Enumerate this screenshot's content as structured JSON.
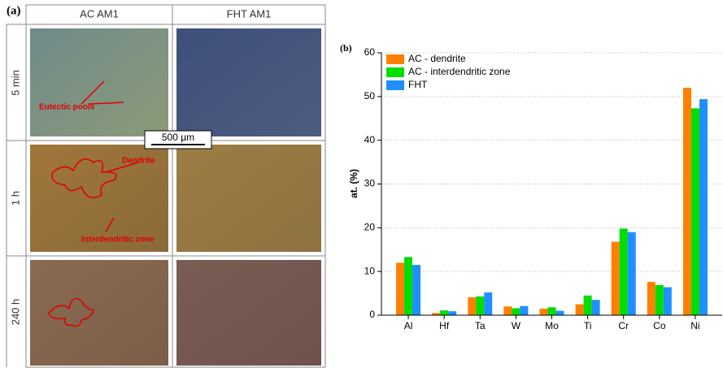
{
  "panel_a": {
    "label": "(a)",
    "columns": [
      "AC AM1",
      "FHT AM1"
    ],
    "rows": [
      "5 min",
      "1 h",
      "240 h"
    ],
    "annotations": {
      "eutectic": "Eutectic pools",
      "scale": "500 µm",
      "dendrite": "Dendrite",
      "interdendritic": "Interdendritic zone"
    }
  },
  "chart_data": {
    "type": "bar",
    "label": "(b)",
    "ylabel": "at. (%)",
    "categories": [
      "Al",
      "Hf",
      "Ta",
      "W",
      "Mo",
      "Ti",
      "Cr",
      "Co",
      "Ni"
    ],
    "series": [
      {
        "name": "AC - dendrite",
        "color": "#ff8000",
        "values": [
          12.0,
          0.5,
          4.1,
          2.0,
          1.5,
          2.5,
          16.8,
          7.6,
          52.0
        ]
      },
      {
        "name": "AC - interdendritic zone",
        "color": "#00dd00",
        "values": [
          13.3,
          1.1,
          4.3,
          1.6,
          1.8,
          4.5,
          19.8,
          6.9,
          47.3
        ]
      },
      {
        "name": "FHT",
        "color": "#1e90ff",
        "values": [
          11.5,
          0.9,
          5.2,
          2.1,
          1.0,
          3.5,
          19.0,
          6.4,
          49.4
        ]
      }
    ],
    "ylim": [
      0,
      60
    ],
    "yticks": [
      0,
      10,
      20,
      30,
      40,
      50,
      60
    ],
    "grid": true,
    "legend": "upper-left"
  }
}
